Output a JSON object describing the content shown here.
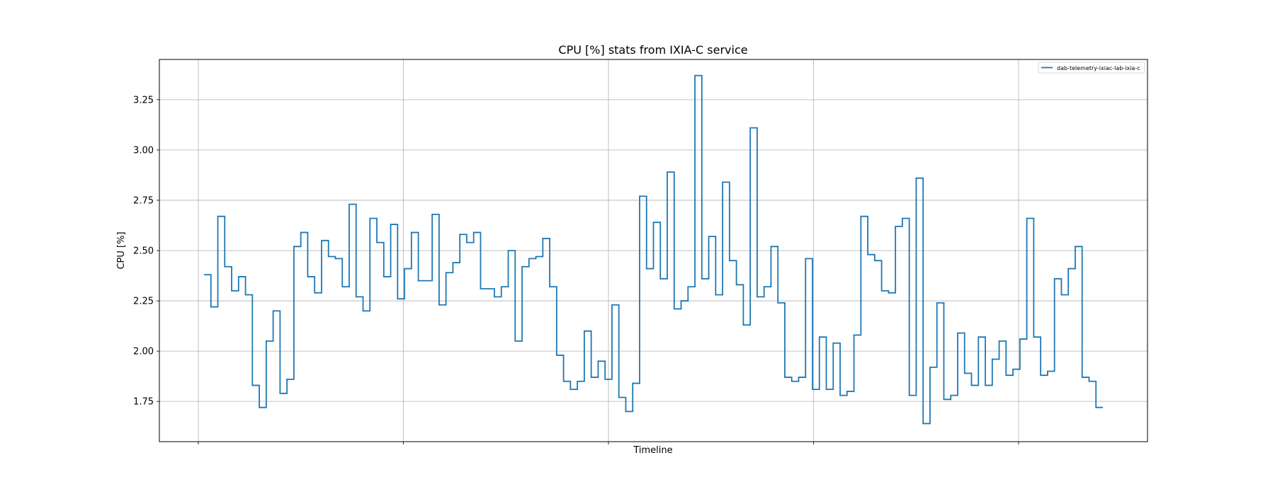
{
  "chart_data": {
    "type": "line",
    "drawstyle": "steps-post",
    "title": "CPU [%] stats from IXIA-C service",
    "xlabel": "Timeline",
    "ylabel": "CPU [%]",
    "ylim": [
      1.55,
      3.45
    ],
    "yticks": [
      1.75,
      2.0,
      2.25,
      2.5,
      2.75,
      3.0,
      3.25
    ],
    "ytick_labels": [
      "1.75",
      "2.00",
      "2.25",
      "2.50",
      "2.75",
      "3.00",
      "3.25"
    ],
    "x_gridlines": 5,
    "grid": true,
    "legend_position": "top-right",
    "series": [
      {
        "name": "dab-telemetry-ixiac-lab-ixia-c",
        "color": "#1f77b4",
        "values": [
          2.38,
          2.22,
          2.67,
          2.42,
          2.3,
          2.37,
          2.28,
          1.83,
          1.72,
          2.05,
          2.2,
          1.79,
          1.86,
          2.52,
          2.59,
          2.37,
          2.29,
          2.55,
          2.47,
          2.46,
          2.32,
          2.73,
          2.27,
          2.2,
          2.66,
          2.54,
          2.37,
          2.63,
          2.26,
          2.41,
          2.59,
          2.35,
          2.35,
          2.68,
          2.23,
          2.39,
          2.44,
          2.58,
          2.54,
          2.59,
          2.31,
          2.31,
          2.27,
          2.32,
          2.5,
          2.05,
          2.42,
          2.46,
          2.47,
          2.56,
          2.32,
          1.98,
          1.85,
          1.81,
          1.85,
          2.1,
          1.87,
          1.95,
          1.86,
          2.23,
          1.77,
          1.7,
          1.84,
          2.77,
          2.41,
          2.64,
          2.36,
          2.89,
          2.21,
          2.25,
          2.32,
          3.37,
          2.36,
          2.57,
          2.28,
          2.84,
          2.45,
          2.33,
          2.13,
          3.11,
          2.27,
          2.32,
          2.52,
          2.24,
          1.87,
          1.85,
          1.87,
          2.46,
          1.81,
          2.07,
          1.81,
          2.04,
          1.78,
          1.8,
          2.08,
          2.67,
          2.48,
          2.45,
          2.3,
          2.29,
          2.62,
          2.66,
          1.78,
          2.86,
          1.64,
          1.92,
          2.24,
          1.76,
          1.78,
          2.09,
          1.89,
          1.83,
          2.07,
          1.83,
          1.96,
          2.05,
          1.88,
          1.91,
          2.06,
          2.66,
          2.07,
          1.88,
          1.9,
          2.36,
          2.28,
          2.41,
          2.52,
          1.87,
          1.85,
          1.72
        ]
      }
    ]
  }
}
